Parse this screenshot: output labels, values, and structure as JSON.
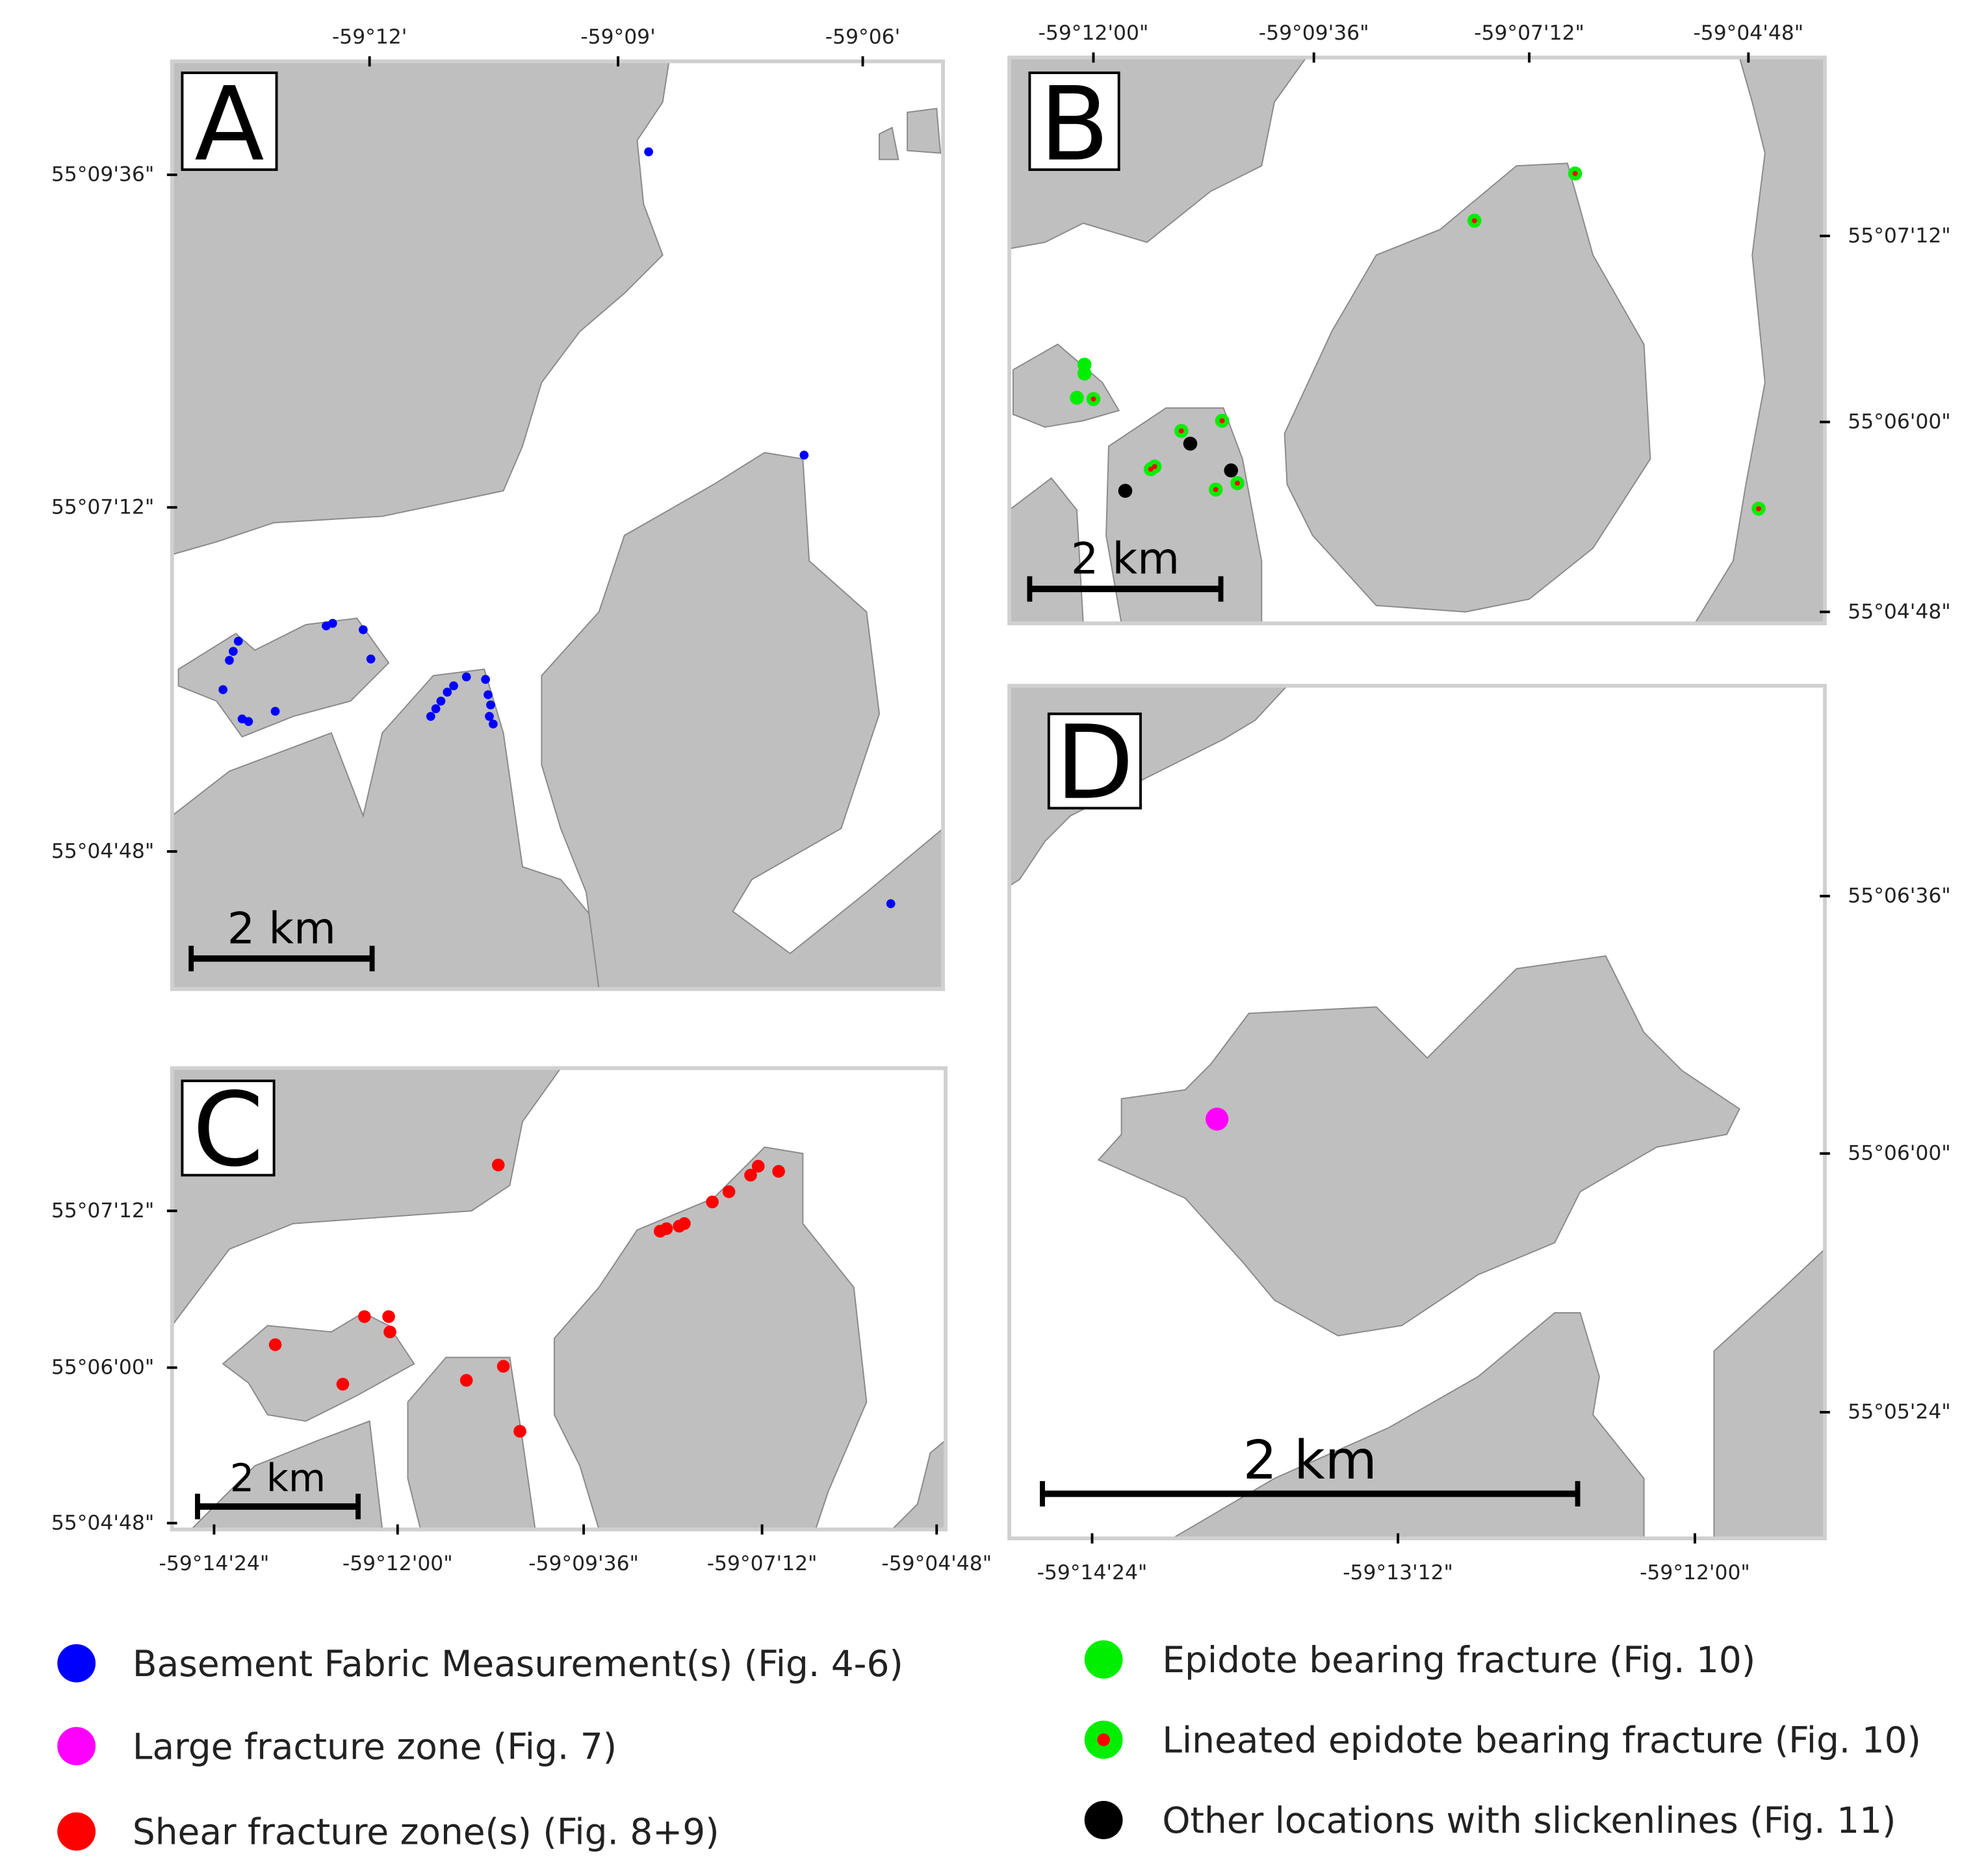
{
  "panels": [
    {
      "label": "A",
      "top_ticks": [
        "-59°12'",
        "-59°09'",
        "-59°06'"
      ],
      "left_ticks": [
        "55°09'36\"",
        "55°07'12\"",
        "55°04'48\""
      ],
      "scale_bar": "2 km"
    },
    {
      "label": "B",
      "top_ticks": [
        "-59°12'00\"",
        "-59°09'36\"",
        "-59°07'12\"",
        "-59°04'48\""
      ],
      "right_ticks": [
        "55°07'12\"",
        "55°06'00\"",
        "55°04'48\""
      ],
      "scale_bar": "2 km"
    },
    {
      "label": "C",
      "left_ticks": [
        "55°07'12\"",
        "55°06'00\"",
        "55°04'48\""
      ],
      "bottom_ticks": [
        "-59°14'24\"",
        "-59°12'00\"",
        "-59°09'36\"",
        "-59°07'12\"",
        "-59°04'48\""
      ],
      "scale_bar": "2 km"
    },
    {
      "label": "D",
      "right_ticks": [
        "55°06'36\"",
        "55°06'00\"",
        "55°05'24\""
      ],
      "bottom_ticks": [
        "-59°14'24\"",
        "-59°13'12\"",
        "-59°12'00\""
      ],
      "scale_bar": "2 km"
    }
  ],
  "legend": [
    "Basement Fabric Measurement(s) (Fig. 4-6)",
    "Large fracture zone (Fig. 7)",
    "Shear fracture zone(s) (Fig. 8+9)",
    "Epidote bearing fracture (Fig. 10)",
    "Lineated epidote bearing fracture (Fig. 10)",
    "Other locations with slickenlines (Fig. 11)"
  ]
}
